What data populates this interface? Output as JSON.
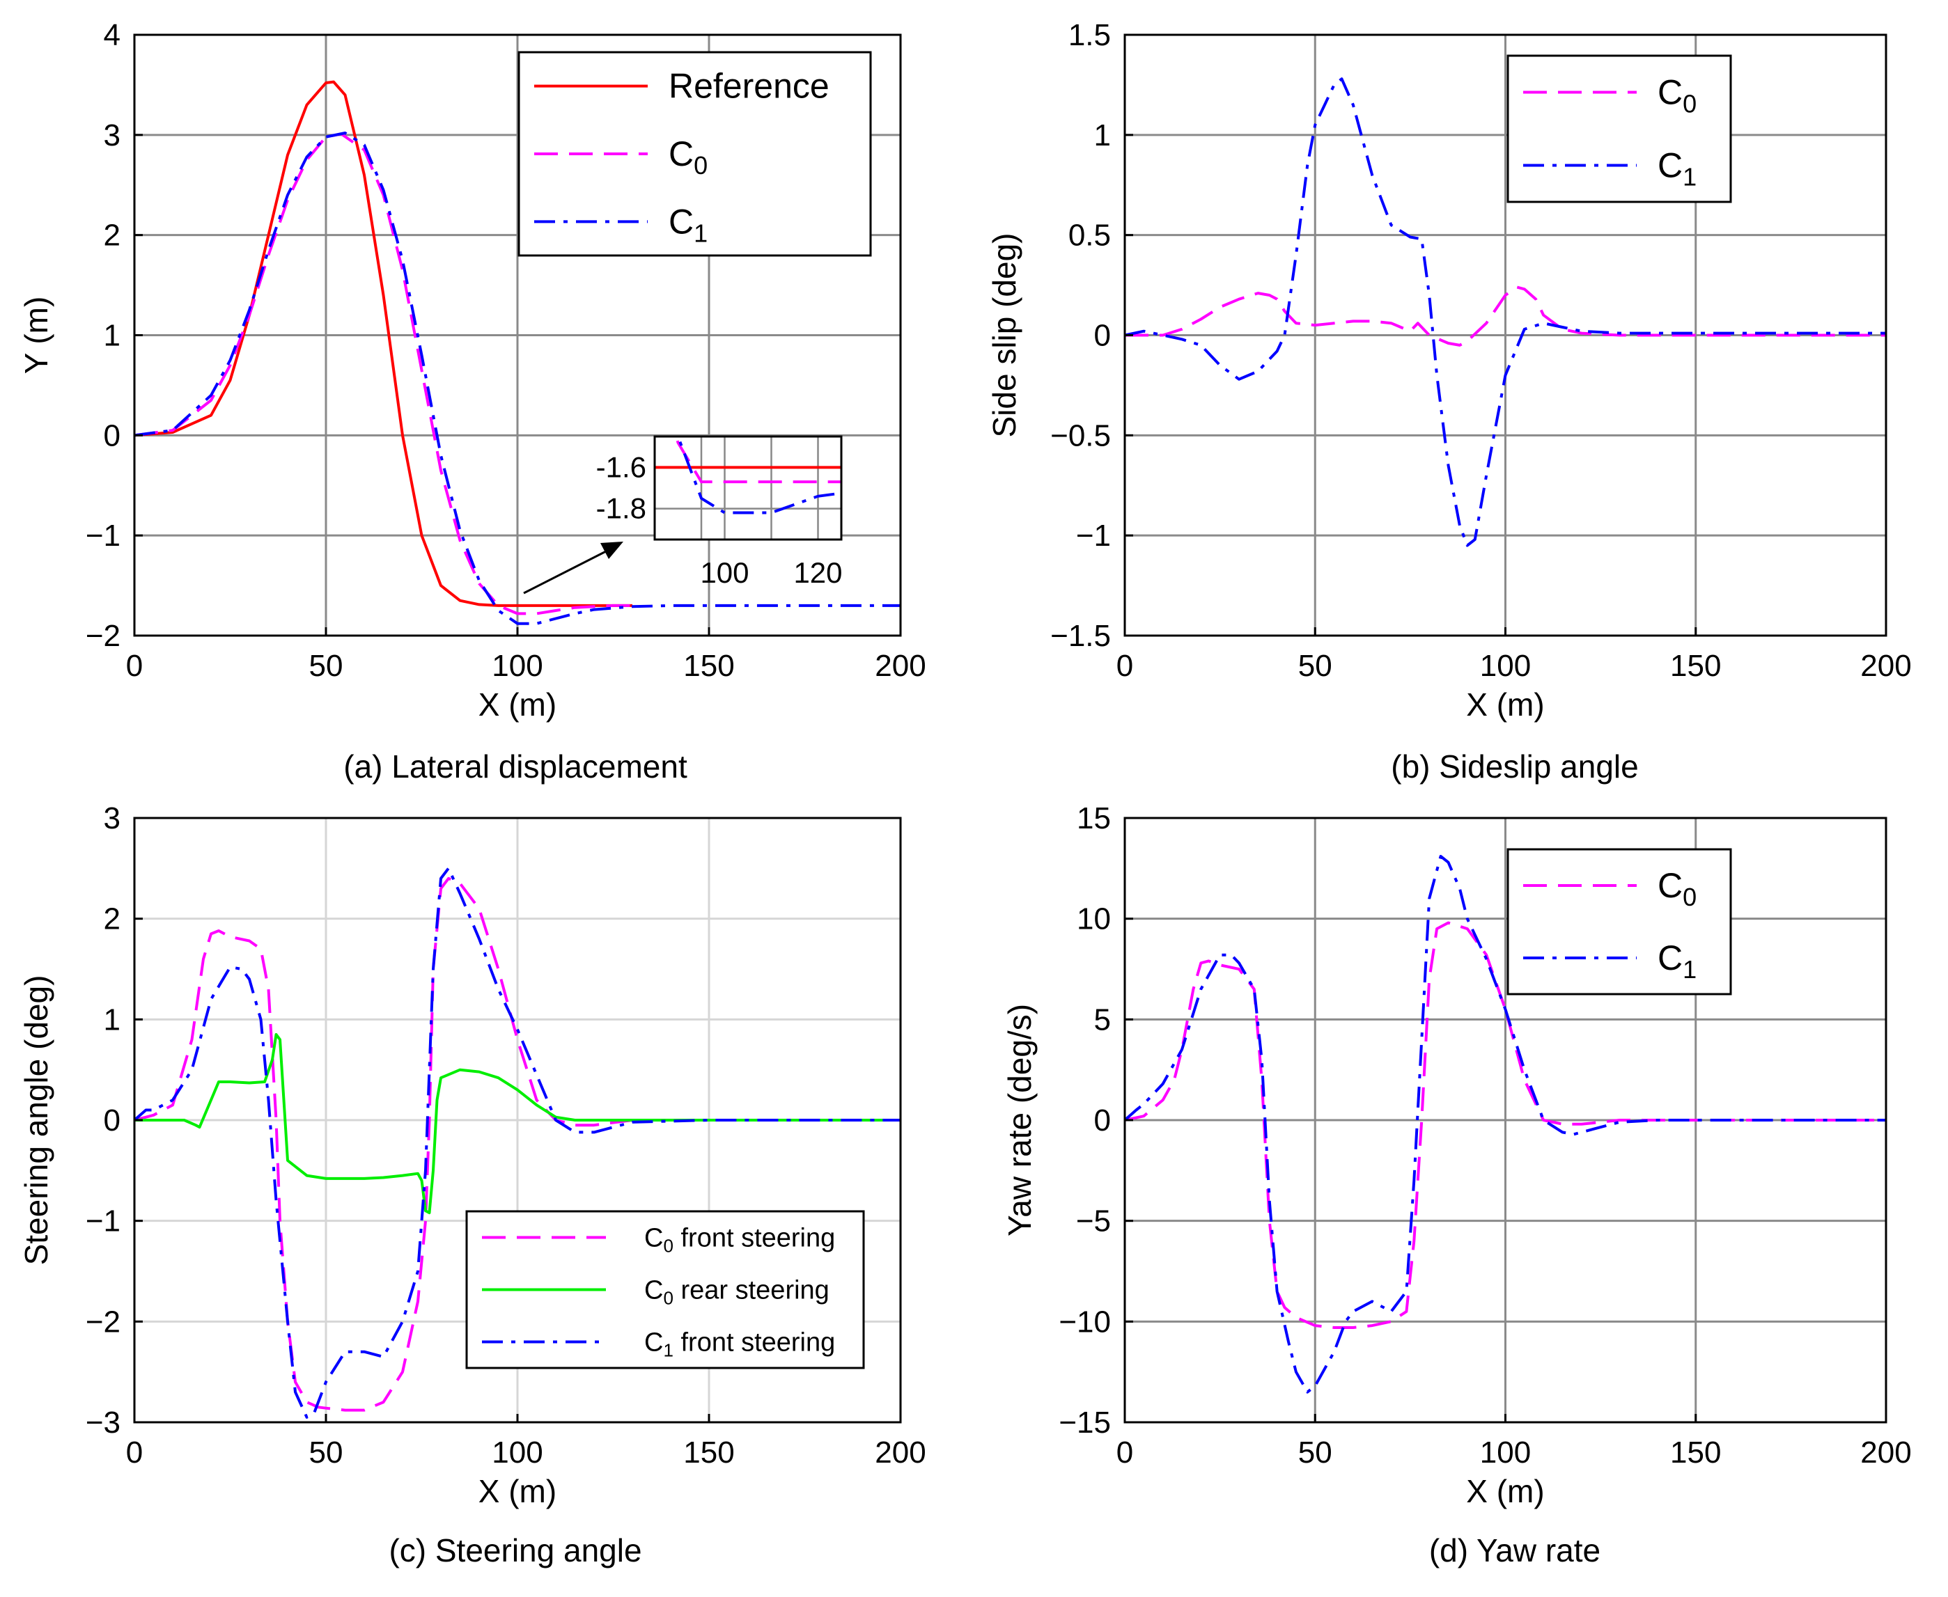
{
  "colors": {
    "reference": "#ff0000",
    "c0": "#ff00ff",
    "c1": "#0000ff",
    "c0_rear": "#00ee00",
    "grid_dark": "#888888",
    "grid_light": "#d9d9d9"
  },
  "chart_data": [
    {
      "id": "a",
      "type": "line",
      "caption": "(a) Lateral displacement",
      "xlabel": "X (m)",
      "ylabel": "Y (m)",
      "xlim": [
        0,
        200
      ],
      "ylim": [
        -2,
        4
      ],
      "xticks": [
        0,
        50,
        100,
        150,
        200
      ],
      "yticks": [
        -2,
        -1,
        0,
        1,
        2,
        3,
        4
      ],
      "xtick_labels": [
        "0",
        "50",
        "100",
        "150",
        "200"
      ],
      "ytick_labels": [
        "−2",
        "−1",
        "0",
        "1",
        "2",
        "3",
        "4"
      ],
      "legend": [
        "Reference",
        "C0",
        "C1"
      ],
      "legend_display": [
        "Reference",
        "C",
        "C"
      ],
      "legend_sub": [
        "",
        "0",
        "1"
      ],
      "series": [
        {
          "name": "Reference",
          "color": "#ff0000",
          "dash": "solid",
          "x": [
            0,
            10,
            20,
            25,
            30,
            35,
            40,
            45,
            50,
            52,
            55,
            60,
            65,
            70,
            75,
            80,
            85,
            90,
            95,
            100,
            110,
            120,
            130
          ],
          "y": [
            0,
            0.03,
            0.2,
            0.55,
            1.2,
            2.0,
            2.8,
            3.3,
            3.52,
            3.53,
            3.4,
            2.6,
            1.4,
            0.0,
            -1.0,
            -1.5,
            -1.65,
            -1.69,
            -1.7,
            -1.7,
            -1.7,
            -1.7,
            -1.7
          ]
        },
        {
          "name": "C0",
          "color": "#ff00ff",
          "dash": "dash",
          "x": [
            0,
            10,
            20,
            25,
            30,
            35,
            40,
            45,
            50,
            54,
            60,
            65,
            70,
            75,
            80,
            85,
            90,
            95,
            100,
            105,
            110,
            115,
            120,
            125,
            130
          ],
          "y": [
            0,
            0.05,
            0.35,
            0.7,
            1.2,
            1.8,
            2.35,
            2.75,
            2.98,
            3.01,
            2.85,
            2.4,
            1.65,
            0.65,
            -0.35,
            -1.05,
            -1.48,
            -1.7,
            -1.78,
            -1.78,
            -1.75,
            -1.72,
            -1.71,
            -1.7,
            -1.7
          ]
        },
        {
          "name": "C1",
          "color": "#0000ff",
          "dash": "dashdot",
          "x": [
            0,
            10,
            20,
            25,
            30,
            35,
            40,
            45,
            50,
            55,
            60,
            65,
            70,
            75,
            80,
            85,
            90,
            95,
            100,
            105,
            110,
            115,
            120,
            130,
            140,
            150,
            160,
            170,
            180,
            200
          ],
          "y": [
            0,
            0.05,
            0.4,
            0.75,
            1.25,
            1.85,
            2.4,
            2.78,
            2.98,
            3.02,
            2.9,
            2.45,
            1.75,
            0.8,
            -0.2,
            -0.95,
            -1.45,
            -1.75,
            -1.88,
            -1.88,
            -1.83,
            -1.78,
            -1.74,
            -1.71,
            -1.7,
            -1.7,
            -1.7,
            -1.7,
            -1.7,
            -1.7
          ]
        }
      ],
      "inset": {
        "xlim": [
          85,
          125
        ],
        "ylim": [
          -1.95,
          -1.45
        ],
        "xticks": [
          100,
          120
        ],
        "yticks": [
          -1.6,
          -1.8
        ],
        "xtick_labels": [
          "100",
          "120"
        ],
        "ytick_labels": [
          "-1.6",
          "-1.8"
        ]
      }
    },
    {
      "id": "b",
      "type": "line",
      "caption": "(b) Sideslip angle",
      "xlabel": "X (m)",
      "ylabel": "Side slip (deg)",
      "xlim": [
        0,
        200
      ],
      "ylim": [
        -1.5,
        1.5
      ],
      "xticks": [
        0,
        50,
        100,
        150,
        200
      ],
      "yticks": [
        -1.5,
        -1,
        -0.5,
        0,
        0.5,
        1,
        1.5
      ],
      "xtick_labels": [
        "0",
        "50",
        "100",
        "150",
        "200"
      ],
      "ytick_labels": [
        "−1.5",
        "−1",
        "−0.5",
        "0",
        "0.5",
        "1",
        "1.5"
      ],
      "legend": [
        "C0",
        "C1"
      ],
      "legend_display": [
        "C",
        "C"
      ],
      "legend_sub": [
        "0",
        "1"
      ],
      "series": [
        {
          "name": "C0",
          "color": "#ff00ff",
          "dash": "dash",
          "x": [
            0,
            10,
            15,
            20,
            25,
            30,
            35,
            38,
            40,
            42,
            45,
            50,
            55,
            60,
            65,
            70,
            75,
            77,
            78,
            80,
            85,
            88,
            90,
            95,
            100,
            103,
            105,
            108,
            110,
            115,
            120,
            130,
            140,
            200
          ],
          "y": [
            0,
            0.0,
            0.03,
            0.08,
            0.14,
            0.18,
            0.21,
            0.2,
            0.18,
            0.12,
            0.06,
            0.05,
            0.06,
            0.07,
            0.07,
            0.06,
            0.02,
            0.06,
            0.04,
            0.0,
            -0.04,
            -0.05,
            -0.03,
            0.06,
            0.2,
            0.24,
            0.23,
            0.18,
            0.1,
            0.03,
            0.01,
            0.0,
            0.0,
            0.0
          ]
        },
        {
          "name": "C1",
          "color": "#0000ff",
          "dash": "dashdot",
          "x": [
            0,
            5,
            10,
            15,
            20,
            25,
            30,
            35,
            38,
            40,
            42,
            45,
            48,
            50,
            55,
            57,
            60,
            65,
            70,
            75,
            78,
            80,
            82,
            85,
            88,
            90,
            92,
            95,
            100,
            105,
            110,
            115,
            120,
            130,
            200
          ],
          "y": [
            0,
            0.02,
            0.0,
            -0.02,
            -0.05,
            -0.15,
            -0.22,
            -0.18,
            -0.12,
            -0.08,
            0.0,
            0.4,
            0.85,
            1.05,
            1.25,
            1.28,
            1.15,
            0.8,
            0.55,
            0.49,
            0.48,
            0.2,
            -0.2,
            -0.65,
            -0.95,
            -1.05,
            -1.02,
            -0.7,
            -0.2,
            0.03,
            0.06,
            0.04,
            0.02,
            0.01,
            0.01
          ]
        }
      ]
    },
    {
      "id": "c",
      "type": "line",
      "caption": "(c) Steering angle",
      "xlabel": "X (m)",
      "ylabel": "Steering angle (deg)",
      "xlim": [
        0,
        200
      ],
      "ylim": [
        -3,
        3
      ],
      "xticks": [
        0,
        50,
        100,
        150,
        200
      ],
      "yticks": [
        -3,
        -2,
        -1,
        0,
        1,
        2,
        3
      ],
      "xtick_labels": [
        "0",
        "50",
        "100",
        "150",
        "200"
      ],
      "ytick_labels": [
        "−3",
        "−2",
        "−1",
        "0",
        "1",
        "2",
        "3"
      ],
      "legend": [
        "C0 front steering",
        "C0 rear steering",
        "C1 front steering"
      ],
      "legend_display": [
        "C",
        "C",
        "C"
      ],
      "legend_sub": [
        "0",
        "0",
        "1"
      ],
      "legend_rest": [
        " front steering",
        " rear steering",
        " front steering"
      ],
      "series": [
        {
          "name": "C0 front steering",
          "color": "#ff00ff",
          "dash": "dash",
          "x": [
            0,
            5,
            10,
            15,
            18,
            20,
            22,
            25,
            30,
            33,
            35,
            37,
            38,
            40,
            42,
            45,
            48,
            50,
            55,
            60,
            65,
            70,
            74,
            76,
            77,
            78,
            80,
            82,
            85,
            90,
            95,
            100,
            105,
            110,
            115,
            120,
            130,
            150,
            200
          ],
          "y": [
            0,
            0.05,
            0.15,
            0.8,
            1.6,
            1.85,
            1.88,
            1.82,
            1.78,
            1.7,
            1.3,
            0.0,
            -1.0,
            -2.0,
            -2.6,
            -2.8,
            -2.85,
            -2.86,
            -2.88,
            -2.88,
            -2.8,
            -2.5,
            -1.8,
            -1.0,
            0.0,
            1.5,
            2.3,
            2.4,
            2.35,
            2.1,
            1.5,
            0.8,
            0.2,
            0.0,
            -0.05,
            -0.05,
            0.0,
            0.0,
            0.0
          ]
        },
        {
          "name": "C0 rear steering",
          "color": "#00ee00",
          "dash": "solid",
          "x": [
            0,
            5,
            10,
            13,
            16,
            17,
            20,
            22,
            25,
            30,
            34,
            36,
            37,
            38,
            40,
            45,
            50,
            55,
            60,
            65,
            70,
            74,
            75,
            76,
            77,
            78,
            79,
            80,
            85,
            90,
            95,
            100,
            105,
            110,
            115,
            120,
            200
          ],
          "y": [
            0,
            0.0,
            0.0,
            0.0,
            -0.05,
            -0.07,
            0.2,
            0.38,
            0.38,
            0.37,
            0.38,
            0.6,
            0.85,
            0.8,
            -0.4,
            -0.55,
            -0.58,
            -0.58,
            -0.58,
            -0.57,
            -0.55,
            -0.53,
            -0.6,
            -0.9,
            -0.92,
            -0.5,
            0.2,
            0.42,
            0.5,
            0.48,
            0.42,
            0.3,
            0.15,
            0.03,
            0.0,
            0.0,
            0.0
          ]
        },
        {
          "name": "C1 front steering",
          "color": "#0000ff",
          "dash": "dashdot",
          "x": [
            0,
            3,
            5,
            10,
            15,
            20,
            25,
            28,
            30,
            33,
            35,
            37,
            40,
            42,
            45,
            47,
            50,
            55,
            60,
            65,
            70,
            74,
            76,
            78,
            80,
            82,
            85,
            90,
            95,
            100,
            105,
            110,
            115,
            120,
            130,
            150,
            200
          ],
          "y": [
            0,
            0.1,
            0.1,
            0.2,
            0.5,
            1.2,
            1.52,
            1.5,
            1.4,
            1.0,
            0.2,
            -0.8,
            -2.0,
            -2.7,
            -2.95,
            -2.9,
            -2.6,
            -2.3,
            -2.3,
            -2.35,
            -2.0,
            -1.5,
            -0.5,
            1.5,
            2.4,
            2.5,
            2.25,
            1.8,
            1.3,
            0.9,
            0.45,
            0.0,
            -0.12,
            -0.12,
            -0.02,
            0.0,
            0.0
          ]
        }
      ]
    },
    {
      "id": "d",
      "type": "line",
      "caption": "(d) Yaw rate",
      "xlabel": "X (m)",
      "ylabel": "Yaw rate (deg/s)",
      "xlim": [
        0,
        200
      ],
      "ylim": [
        -15,
        15
      ],
      "xticks": [
        0,
        50,
        100,
        150,
        200
      ],
      "yticks": [
        -15,
        -10,
        -5,
        0,
        5,
        10,
        15
      ],
      "xtick_labels": [
        "0",
        "50",
        "100",
        "150",
        "200"
      ],
      "ytick_labels": [
        "−15",
        "−10",
        "−5",
        "0",
        "5",
        "10",
        "15"
      ],
      "legend": [
        "C0",
        "C1"
      ],
      "legend_display": [
        "C",
        "C"
      ],
      "legend_sub": [
        "0",
        "1"
      ],
      "series": [
        {
          "name": "C0",
          "color": "#ff00ff",
          "dash": "dash",
          "x": [
            0,
            5,
            10,
            13,
            15,
            18,
            20,
            22,
            25,
            30,
            34,
            36,
            38,
            40,
            42,
            45,
            50,
            55,
            60,
            65,
            70,
            74,
            76,
            78,
            80,
            82,
            85,
            90,
            95,
            100,
            105,
            110,
            115,
            120,
            130,
            200
          ],
          "y": [
            0,
            0.2,
            1.0,
            2.0,
            3.5,
            6.5,
            7.8,
            7.9,
            7.7,
            7.5,
            6.5,
            2.0,
            -5.0,
            -8.5,
            -9.3,
            -9.8,
            -10.2,
            -10.3,
            -10.3,
            -10.2,
            -10.0,
            -9.5,
            -6.0,
            0.0,
            7.0,
            9.5,
            9.8,
            9.5,
            8.2,
            5.5,
            2.0,
            0.0,
            -0.2,
            -0.2,
            0.0,
            0.0
          ]
        },
        {
          "name": "C1",
          "color": "#0000ff",
          "dash": "dashdot",
          "x": [
            0,
            3,
            5,
            10,
            15,
            20,
            25,
            28,
            30,
            34,
            36,
            38,
            40,
            43,
            45,
            48,
            50,
            55,
            58,
            60,
            65,
            70,
            74,
            76,
            78,
            80,
            83,
            85,
            88,
            90,
            95,
            100,
            105,
            110,
            115,
            118,
            120,
            130,
            140,
            200
          ],
          "y": [
            0,
            0.5,
            0.8,
            1.8,
            3.5,
            6.5,
            8.2,
            8.2,
            7.8,
            6.5,
            3.0,
            -4.0,
            -8.5,
            -11.0,
            -12.5,
            -13.5,
            -13.2,
            -11.5,
            -10.0,
            -9.5,
            -9.0,
            -9.5,
            -8.5,
            -3.0,
            4.0,
            11.0,
            13.1,
            12.8,
            11.5,
            10.0,
            8.0,
            5.5,
            2.5,
            0.0,
            -0.6,
            -0.7,
            -0.6,
            -0.1,
            0.0,
            0.0
          ]
        }
      ]
    }
  ]
}
